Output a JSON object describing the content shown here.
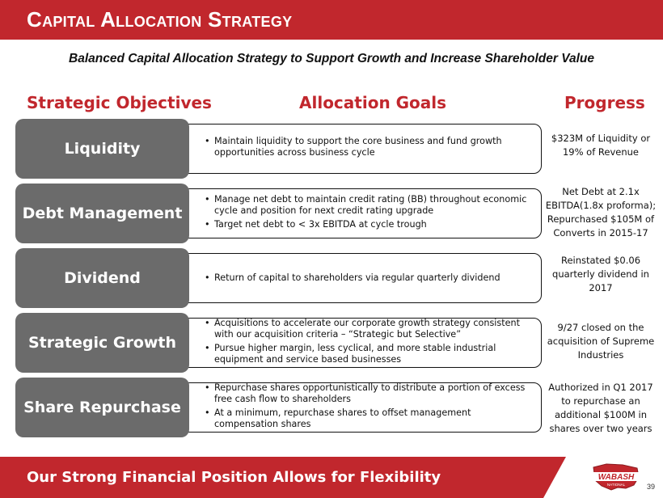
{
  "header": {
    "title": "Capital Allocation Strategy"
  },
  "subtitle": "Balanced Capital Allocation Strategy to Support Growth and Increase Shareholder Value",
  "columns": {
    "objectives": "Strategic Objectives",
    "goals": "Allocation Goals",
    "progress": "Progress"
  },
  "rows": [
    {
      "objective": "Liquidity",
      "goals": [
        "Maintain liquidity to support the core business and fund growth opportunities across business cycle"
      ],
      "progress": "$323M of Liquidity or 19% of Revenue"
    },
    {
      "objective": "Debt Management",
      "goals": [
        "Manage net debt to maintain credit rating (BB) throughout economic cycle and position for next credit rating upgrade",
        "Target net debt to < 3x EBITDA at cycle trough"
      ],
      "progress": "Net Debt at 2.1x EBITDA(1.8x proforma); Repurchased $105M of Converts in 2015-17"
    },
    {
      "objective": "Dividend",
      "goals": [
        "Return of capital to shareholders via regular quarterly dividend"
      ],
      "progress": "Reinstated $0.06 quarterly dividend in 2017"
    },
    {
      "objective": "Strategic Growth",
      "goals": [
        "Acquisitions to accelerate our corporate growth strategy consistent with our acquisition criteria – “Strategic but Selective”",
        "Pursue higher margin, less cyclical, and more stable industrial equipment and service based businesses"
      ],
      "progress": "9/27 closed on the acquisition of Supreme Industries"
    },
    {
      "objective": "Share Repurchase",
      "goals": [
        "Repurchase shares opportunistically to distribute a portion of excess free cash flow to shareholders",
        "At a minimum, repurchase shares to offset management compensation shares"
      ],
      "progress": "Authorized in Q1 2017 to repurchase an additional $100M in shares over two years"
    }
  ],
  "footer": {
    "text": "Our Strong Financial Position Allows for Flexibility",
    "logo_text": "WABASH",
    "logo_subtext": "NATIONAL",
    "page_number": "39"
  },
  "colors": {
    "brand_red": "#c1272d",
    "objective_gray": "#6b6b6b"
  }
}
